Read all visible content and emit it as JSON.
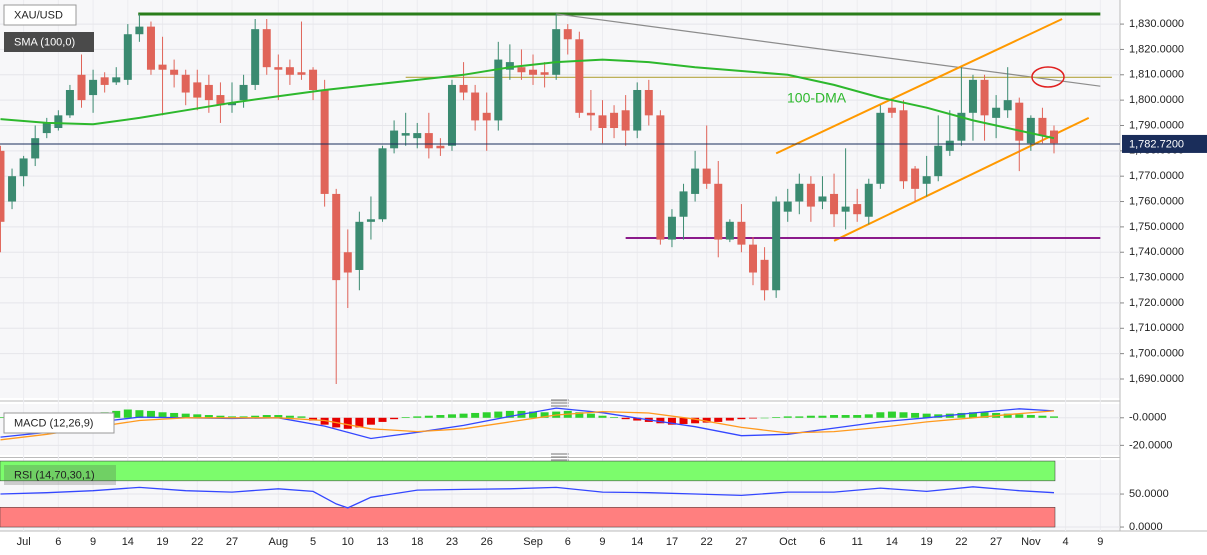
{
  "chart_data": [
    {
      "type": "candlestick",
      "title": "XAU/USD",
      "indicator": "SMA (100,0)",
      "annotation": "100-DMA",
      "up_color": "#3a8a70",
      "down_color": "#e06459",
      "grid": true,
      "xlim": [
        -0.04,
        96.7
      ],
      "ylim": [
        1682.5,
        1839.5
      ],
      "yticks": [
        {
          "value": 1690,
          "label": "1,690.0000"
        },
        {
          "value": 1700,
          "label": "1,700.0000"
        },
        {
          "value": 1710,
          "label": "1,710.0000"
        },
        {
          "value": 1720,
          "label": "1,720.0000"
        },
        {
          "value": 1730,
          "label": "1,730.0000"
        },
        {
          "value": 1740,
          "label": "1,740.0000"
        },
        {
          "value": 1750,
          "label": "1,750.0000"
        },
        {
          "value": 1760,
          "label": "1,760.0000"
        },
        {
          "value": 1770,
          "label": "1,770.0000"
        },
        {
          "value": 1780,
          "label": "1,780.0000"
        },
        {
          "value": 1790,
          "label": "1,790.0000"
        },
        {
          "value": 1800,
          "label": "1,800.0000"
        },
        {
          "value": 1810,
          "label": "1,810.0000"
        },
        {
          "value": 1820,
          "label": "1,820.0000"
        },
        {
          "value": 1830,
          "label": "1,830.0000"
        }
      ],
      "xticks": [
        {
          "value": 2,
          "label": "Jul"
        },
        {
          "value": 5,
          "label": "6"
        },
        {
          "value": 8,
          "label": "9"
        },
        {
          "value": 11,
          "label": "14"
        },
        {
          "value": 14,
          "label": "19"
        },
        {
          "value": 17,
          "label": "22"
        },
        {
          "value": 20,
          "label": "27"
        },
        {
          "value": 24,
          "label": "Aug"
        },
        {
          "value": 27,
          "label": "5"
        },
        {
          "value": 30,
          "label": "10"
        },
        {
          "value": 33,
          "label": "13"
        },
        {
          "value": 36,
          "label": "18"
        },
        {
          "value": 39,
          "label": "23"
        },
        {
          "value": 42,
          "label": "26"
        },
        {
          "value": 46,
          "label": "Sep"
        },
        {
          "value": 49,
          "label": "6"
        },
        {
          "value": 52,
          "label": "9"
        },
        {
          "value": 55,
          "label": "14"
        },
        {
          "value": 58,
          "label": "17"
        },
        {
          "value": 61,
          "label": "22"
        },
        {
          "value": 64,
          "label": "27"
        },
        {
          "value": 68,
          "label": "Oct"
        },
        {
          "value": 71,
          "label": "6"
        },
        {
          "value": 74,
          "label": "11"
        },
        {
          "value": 77,
          "label": "14"
        },
        {
          "value": 80,
          "label": "19"
        },
        {
          "value": 83,
          "label": "22"
        },
        {
          "value": 86,
          "label": "27"
        },
        {
          "value": 89,
          "label": "Nov"
        },
        {
          "value": 92,
          "label": "4"
        },
        {
          "value": 95,
          "label": "9"
        }
      ],
      "open": [
        1780,
        1760,
        1770,
        1777,
        1787,
        1789,
        1794,
        1810,
        1802,
        1809,
        1807,
        1808,
        1826,
        1829,
        1814,
        1812,
        1810,
        1807,
        1806,
        1802,
        1798,
        1800,
        1806,
        1828,
        1813,
        1813,
        1811,
        1812,
        1804,
        1763,
        1740,
        1733,
        1752,
        1753,
        1781,
        1786,
        1785,
        1787,
        1782,
        1782,
        1806,
        1803,
        1795,
        1792,
        1812,
        1813,
        1812,
        1811,
        1810,
        1828,
        1824,
        1795,
        1794,
        1795,
        1796,
        1788,
        1804,
        1794,
        1745,
        1754,
        1763,
        1773,
        1767,
        1745,
        1752,
        1743,
        1737,
        1725,
        1756,
        1760,
        1767,
        1760,
        1763,
        1756,
        1759,
        1754,
        1767,
        1797,
        1796,
        1773,
        1767,
        1770,
        1780,
        1784,
        1795,
        1808,
        1793,
        1796,
        1799,
        1783,
        1793,
        1788
      ],
      "high": [
        1782,
        1773,
        1778,
        1790,
        1793,
        1796,
        1806,
        1818,
        1812,
        1811,
        1813,
        1830,
        1834,
        1831,
        1825,
        1816,
        1812,
        1812,
        1810,
        1807,
        1807,
        1810,
        1832,
        1832,
        1818,
        1816,
        1831,
        1813,
        1808,
        1765,
        1749,
        1756,
        1762,
        1782,
        1792,
        1795,
        1791,
        1795,
        1785,
        1808,
        1815,
        1806,
        1803,
        1823,
        1822,
        1820,
        1818,
        1815,
        1834,
        1830,
        1827,
        1804,
        1800,
        1798,
        1802,
        1807,
        1808,
        1796,
        1757,
        1767,
        1780,
        1790,
        1776,
        1753,
        1759,
        1746,
        1742,
        1762,
        1765,
        1771,
        1770,
        1770,
        1771,
        1781,
        1765,
        1769,
        1798,
        1800,
        1800,
        1774,
        1778,
        1794,
        1796,
        1813,
        1810,
        1810,
        1802,
        1813,
        1801,
        1794,
        1797,
        1790
      ],
      "low": [
        1740,
        1757,
        1766,
        1774,
        1785,
        1788,
        1793,
        1797,
        1795,
        1803,
        1806,
        1806,
        1823,
        1810,
        1794,
        1805,
        1798,
        1796,
        1795,
        1791,
        1795,
        1797,
        1804,
        1810,
        1800,
        1806,
        1808,
        1800,
        1758,
        1688,
        1718,
        1725,
        1745,
        1752,
        1779,
        1782,
        1781,
        1777,
        1778,
        1780,
        1800,
        1788,
        1780,
        1788,
        1808,
        1808,
        1806,
        1805,
        1808,
        1818,
        1793,
        1788,
        1783,
        1785,
        1782,
        1785,
        1790,
        1743,
        1742,
        1745,
        1760,
        1765,
        1738,
        1744,
        1740,
        1727,
        1721,
        1722,
        1752,
        1755,
        1752,
        1757,
        1750,
        1749,
        1752,
        1751,
        1765,
        1793,
        1765,
        1760,
        1762,
        1768,
        1778,
        1782,
        1784,
        1784,
        1785,
        1793,
        1772,
        1780,
        1783,
        1779
      ],
      "close": [
        1752,
        1770,
        1777,
        1785,
        1791,
        1794,
        1804,
        1800,
        1808,
        1806,
        1809,
        1826,
        1829,
        1812,
        1812,
        1810,
        1803,
        1801,
        1800,
        1798,
        1799,
        1806,
        1828,
        1813,
        1812,
        1810,
        1810,
        1804,
        1763,
        1729,
        1732,
        1752,
        1753,
        1781,
        1788,
        1787,
        1787,
        1781,
        1781,
        1806,
        1803,
        1792,
        1792,
        1816,
        1815,
        1811,
        1810,
        1810,
        1828,
        1824,
        1795,
        1794,
        1789,
        1789,
        1788,
        1804,
        1794,
        1745,
        1754,
        1764,
        1773,
        1767,
        1745,
        1752,
        1743,
        1732,
        1725,
        1760,
        1760,
        1767,
        1758,
        1762,
        1755,
        1758,
        1755,
        1767,
        1795,
        1795,
        1768,
        1765,
        1770,
        1782,
        1784,
        1795,
        1808,
        1794,
        1797,
        1800,
        1784,
        1793,
        1786,
        1783
      ],
      "sma": {
        "color": "#2db82d",
        "x": [
          0,
          4,
          8,
          12,
          16,
          20,
          24,
          28,
          32,
          36,
          40,
          44,
          48,
          52,
          56,
          60,
          64,
          68,
          72,
          76,
          80,
          84,
          88,
          91
        ],
        "values": [
          1792.5,
          1791,
          1790.5,
          1793,
          1796,
          1799,
          1801.5,
          1804,
          1806,
          1808,
          1810,
          1813,
          1815,
          1816,
          1815,
          1813,
          1811.5,
          1810,
          1806,
          1801,
          1797,
          1792,
          1788,
          1785
        ]
      },
      "last_price": {
        "value": 1782.72,
        "label": "1,782.7200"
      },
      "drawings": [
        {
          "color": "#2a7d1a",
          "x": [
            11.9,
            95
          ],
          "values": [
            1834,
            1834
          ]
        },
        {
          "color": "#8c8c8c",
          "x": [
            48,
            95
          ],
          "values": [
            1834,
            1805.5
          ]
        },
        {
          "color": "#b5a642",
          "x": [
            35,
            96
          ],
          "values": [
            1809,
            1809
          ]
        },
        {
          "color": "#ff9900",
          "x": [
            67,
            91.7
          ],
          "values": [
            1779,
            1832
          ]
        },
        {
          "color": "#ff9900",
          "x": [
            72,
            94
          ],
          "values": [
            1744.5,
            1793
          ]
        },
        {
          "color": "#8b1a8b",
          "x": [
            54,
            95
          ],
          "values": [
            1745.6,
            1745.6
          ]
        }
      ]
    },
    {
      "type": "macd",
      "label": "MACD (12,26,9)",
      "ylim": [
        -27,
        10
      ],
      "yticks": [
        {
          "value": 0,
          "label": "-0.0000"
        },
        {
          "value": -20,
          "label": "-20.0000"
        }
      ],
      "up_color": "#2ed12e",
      "down_color": "#e60000",
      "histogram": [
        0.5,
        0.6,
        0.8,
        1,
        1.2,
        1.5,
        1.8,
        2,
        3,
        4,
        5,
        6,
        5.5,
        5,
        4,
        3.5,
        3,
        2.5,
        2,
        1.5,
        1,
        1,
        1.5,
        2,
        2,
        1.5,
        1,
        -2,
        -5,
        -7,
        -8,
        -7,
        -5,
        -3,
        -1,
        0.5,
        1,
        1.5,
        2,
        2.5,
        3,
        3.5,
        4,
        4.5,
        5,
        5,
        4.5,
        4,
        4.5,
        5,
        4,
        3,
        1.5,
        0.5,
        -1,
        -2,
        -3,
        -4,
        -5,
        -4.5,
        -4,
        -3.5,
        -3,
        -2,
        -1,
        -0.5,
        0,
        0.5,
        1,
        1,
        1.5,
        1.5,
        2,
        2,
        2,
        2.5,
        4,
        4.5,
        4,
        3.5,
        3,
        2.5,
        3,
        3.5,
        4,
        4,
        3.5,
        3,
        2.5,
        2,
        1.5,
        1
      ],
      "series": [
        {
          "color": "#3447ff",
          "x": [
            0,
            4,
            8,
            12,
            16,
            20,
            24,
            28,
            32,
            36,
            40,
            44,
            48,
            52,
            56,
            60,
            64,
            68,
            72,
            76,
            80,
            84,
            88,
            91
          ],
          "values": [
            -14,
            -10.5,
            -3.5,
            0.5,
            0,
            -0.5,
            0,
            -6,
            -15,
            -10.5,
            -5.5,
            1,
            7,
            3.7,
            -1.5,
            -6.5,
            -13,
            -12,
            -7.5,
            -3,
            0,
            3.5,
            6.5,
            5
          ]
        },
        {
          "color": "#ff9a1f",
          "x": [
            0,
            4,
            8,
            12,
            16,
            20,
            24,
            28,
            32,
            36,
            40,
            44,
            48,
            52,
            56,
            60,
            64,
            68,
            72,
            76,
            80,
            84,
            88,
            91
          ],
          "values": [
            -16,
            -12,
            -7,
            -2,
            0,
            0,
            0,
            -2,
            -8,
            -10,
            -8,
            -3,
            2,
            4.5,
            3.5,
            -1,
            -7,
            -11,
            -10,
            -7,
            -3,
            0,
            3,
            5
          ]
        }
      ]
    },
    {
      "type": "rsi",
      "label": "RSI (14,70,30,1)",
      "ylim": [
        -6,
        101.6
      ],
      "yticks": [
        {
          "value": 50,
          "label": "50.0000"
        },
        {
          "value": 0,
          "label": "0.0000"
        }
      ],
      "bands": [
        {
          "color": "#7cfc6c",
          "range": [
            70,
            100
          ]
        },
        {
          "color": "#ff7f7f",
          "range": [
            0,
            30
          ]
        }
      ],
      "series": [
        {
          "color": "#3447ff",
          "x": [
            0,
            4,
            8,
            12,
            16,
            20,
            24,
            27,
            29,
            30,
            32,
            36,
            40,
            44,
            48,
            52,
            56,
            60,
            64,
            68,
            72,
            76,
            80,
            84,
            88,
            91
          ],
          "values": [
            50,
            52,
            55,
            60,
            55,
            53,
            58,
            54,
            35,
            29,
            45,
            56,
            57,
            58,
            60,
            53,
            52,
            50,
            48,
            53,
            53,
            59,
            54,
            61,
            55,
            52
          ]
        }
      ]
    }
  ]
}
